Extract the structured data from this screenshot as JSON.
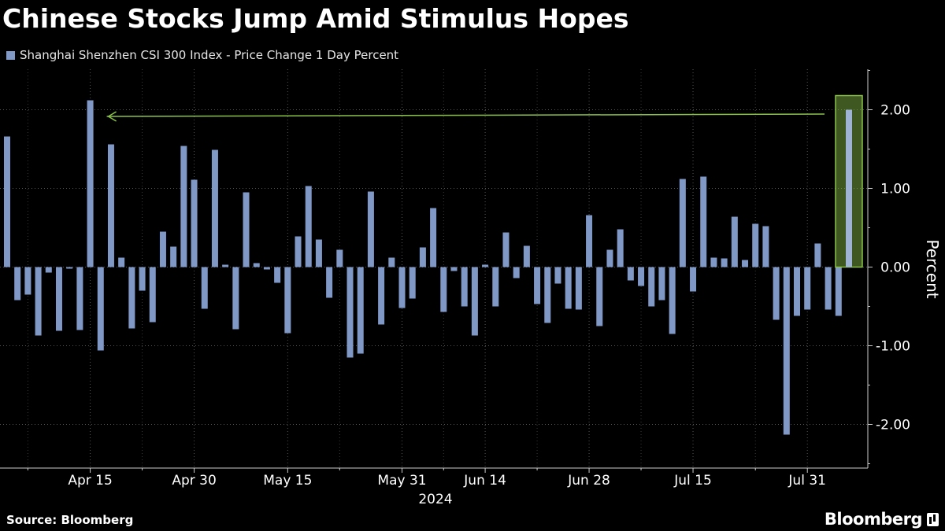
{
  "header": {
    "title": "Chinese Stocks Jump Amid Stimulus Hopes"
  },
  "footer": {
    "source": "Source: Bloomberg",
    "brand": "Bloomberg"
  },
  "colors": {
    "background": "#000000",
    "bar": "#7f98c6",
    "highlight": "#8bc34a",
    "grid": "#555555",
    "text": "#ffffff"
  },
  "chart_data": {
    "type": "bar",
    "title": "Chinese Stocks Jump Amid Stimulus Hopes",
    "series": [
      {
        "name": "Shanghai Shenzhen CSI 300 Index - Price Change 1 Day Percent",
        "values": [
          1.66,
          -0.42,
          -0.35,
          -0.87,
          -0.07,
          -0.81,
          -0.02,
          -0.8,
          2.12,
          -1.06,
          1.56,
          0.12,
          -0.78,
          -0.3,
          -0.7,
          0.45,
          0.26,
          1.54,
          1.11,
          -0.53,
          1.49,
          0.03,
          -0.79,
          0.95,
          0.05,
          -0.03,
          -0.2,
          -0.84,
          0.39,
          1.03,
          0.35,
          -0.39,
          0.22,
          -1.15,
          -1.1,
          0.96,
          -0.73,
          0.12,
          -0.52,
          -0.4,
          0.25,
          0.75,
          -0.57,
          -0.05,
          -0.5,
          -0.87,
          0.03,
          -0.5,
          0.44,
          -0.14,
          0.27,
          -0.47,
          -0.71,
          -0.21,
          -0.53,
          -0.54,
          0.66,
          -0.75,
          0.22,
          0.48,
          -0.17,
          -0.24,
          -0.5,
          -0.42,
          -0.85,
          1.12,
          -0.31,
          1.15,
          0.12,
          0.11,
          0.64,
          0.09,
          0.55,
          0.52,
          -0.67,
          -2.13,
          -0.62,
          -0.54,
          0.3,
          -0.54,
          -0.62,
          2.0
        ]
      }
    ],
    "x_tick_labels": [
      "Apr 15",
      "Apr 30",
      "May 15",
      "May 31",
      "Jun 14",
      "Jun 28",
      "Jul 15",
      "Jul 31"
    ],
    "x_year_label": "2024",
    "y_ticks": [
      -2,
      -1,
      0,
      1,
      2
    ],
    "y_tick_labels": [
      "-2.00",
      "-1.00",
      "0.00",
      "1.00",
      "2.00"
    ],
    "ylabel": "Percent",
    "ylim": [
      -2.55,
      2.55
    ],
    "grid": true,
    "legend_position": "top-left",
    "annotation": {
      "type": "arrow-and-highlight",
      "highlight_bar": "last"
    }
  }
}
